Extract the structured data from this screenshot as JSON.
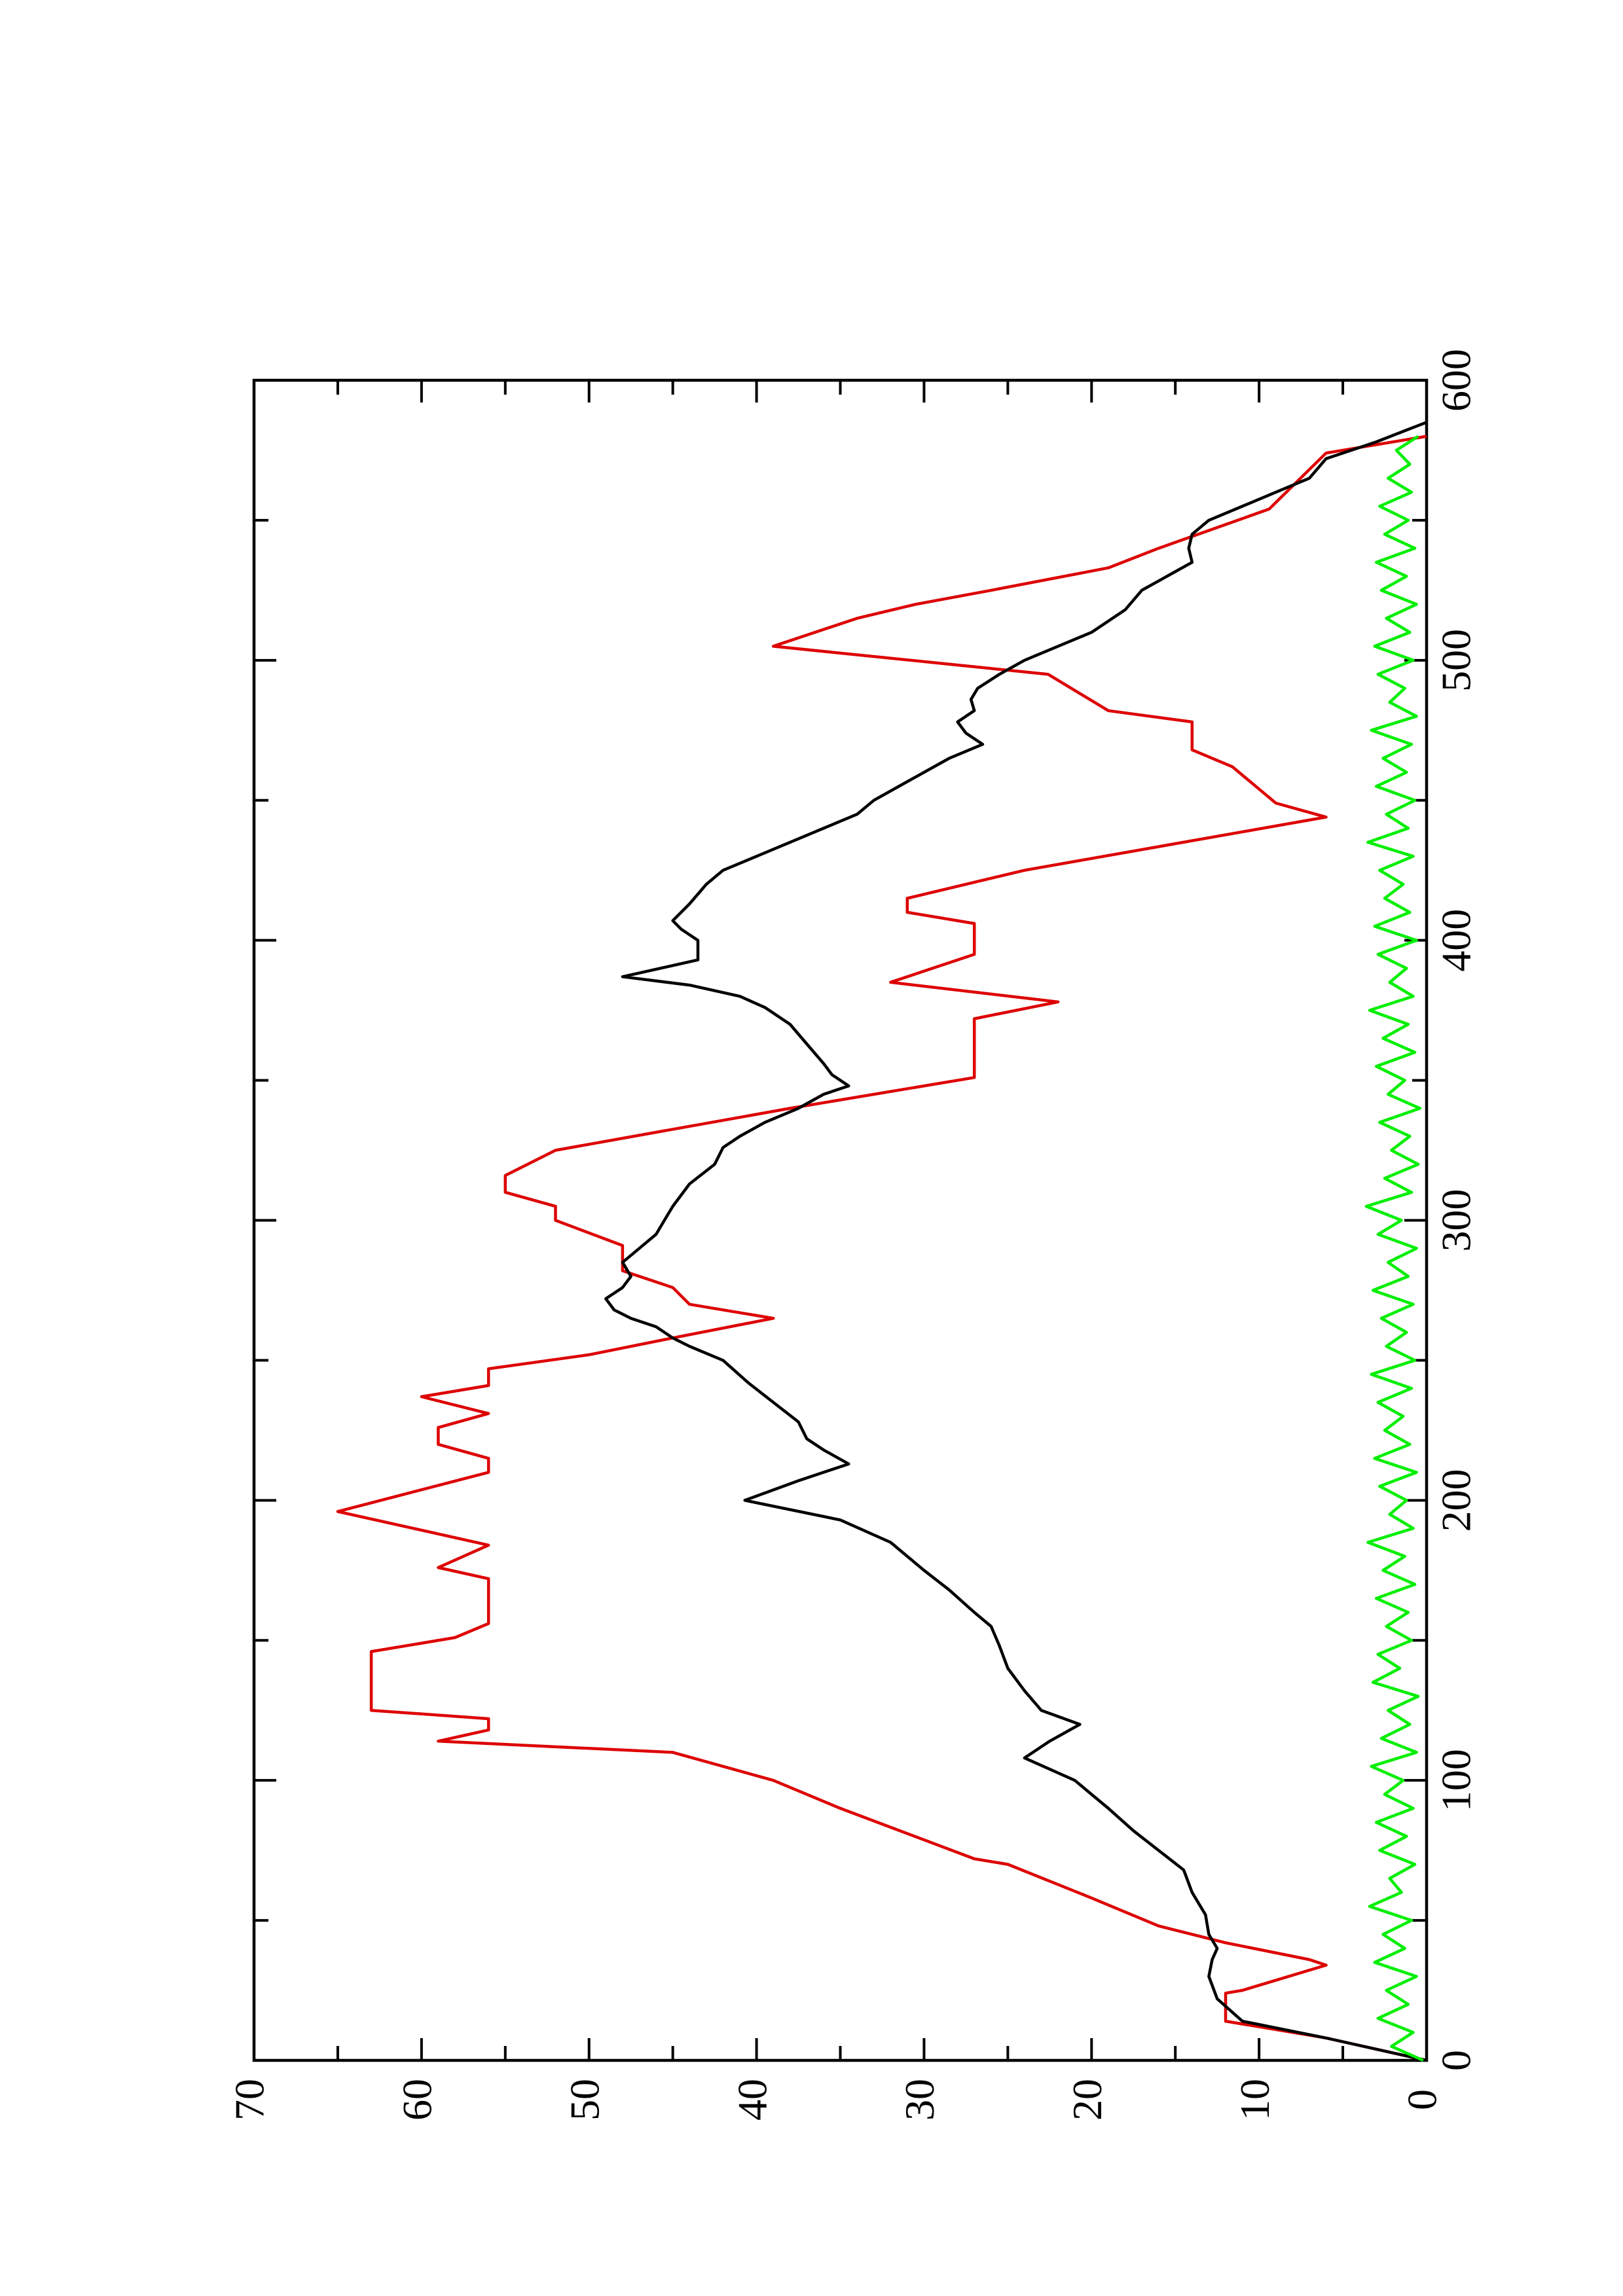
{
  "chart_data": {
    "type": "line",
    "xlim": [
      0,
      600
    ],
    "xticks": [
      0,
      100,
      200,
      300,
      400,
      500,
      600
    ],
    "xminorticks": [
      50,
      150,
      250,
      350,
      450,
      550
    ],
    "ylim": [
      0,
      70
    ],
    "yticks": [
      0,
      10,
      20,
      30,
      40,
      50,
      60,
      70
    ],
    "yminorticks": [
      5,
      15,
      25,
      35,
      45,
      55,
      65
    ],
    "series": [
      {
        "color": "#dd0000",
        "x": [
          0,
          8,
          14,
          24,
          25,
          34,
          36,
          42,
          48,
          58,
          70,
          72,
          90,
          95,
          100,
          110,
          114,
          118,
          122,
          125,
          146,
          151,
          156,
          164,
          172,
          176,
          184,
          196,
          210,
          215,
          220,
          226,
          231,
          237,
          241,
          247,
          252,
          258,
          265,
          270,
          276,
          282,
          291,
          300,
          305,
          310,
          316,
          325,
          340,
          351,
          372,
          378,
          385,
          395,
          406,
          410,
          415,
          425,
          444,
          449,
          462,
          468,
          478,
          482,
          495,
          505,
          515,
          520,
          525,
          533,
          540,
          554,
          574,
          580
        ],
        "values": [
          0,
          6,
          12,
          12,
          11,
          6,
          7,
          12,
          16,
          20,
          25,
          27,
          35,
          37,
          39,
          45,
          59,
          56,
          56,
          63,
          63,
          58,
          56,
          56,
          56,
          59,
          56,
          65,
          56,
          56,
          59,
          59,
          56,
          60,
          56,
          56,
          50,
          45,
          39,
          44,
          45,
          48,
          48,
          52,
          52,
          55,
          55,
          52,
          38,
          27,
          27,
          22,
          32,
          27,
          27,
          31,
          31,
          24,
          6,
          9,
          11.6,
          14,
          14,
          19,
          22.6,
          39,
          34,
          30.5,
          26,
          19,
          16,
          9.4,
          6,
          0
        ]
      },
      {
        "color": "#000000",
        "x": [
          0,
          8,
          14,
          22,
          30,
          36,
          40,
          45,
          52,
          60,
          68,
          75,
          82,
          90,
          95,
          100,
          104,
          108,
          114,
          120,
          125,
          132,
          140,
          148,
          155,
          160,
          168,
          175,
          180,
          185,
          193,
          200,
          207,
          213,
          218,
          222,
          228,
          235,
          242,
          250,
          255,
          258,
          262,
          265,
          268,
          272,
          276,
          280,
          285,
          290,
          295,
          300,
          305,
          313,
          320,
          326,
          330,
          335,
          340,
          345,
          348,
          352,
          356,
          363,
          370,
          376,
          380,
          384,
          387,
          393,
          400,
          404,
          407,
          413,
          420,
          425,
          430,
          435,
          440,
          445,
          450,
          455,
          460,
          465,
          470,
          474,
          478,
          482,
          486,
          490,
          495,
          500,
          505,
          510,
          518,
          525,
          530,
          535,
          540,
          545,
          550,
          555,
          560,
          565,
          572,
          578,
          585
        ],
        "values": [
          0,
          6,
          11,
          12.5,
          13,
          12.8,
          12.5,
          13,
          13.2,
          14,
          14.5,
          16,
          17.5,
          19,
          20,
          21,
          22.5,
          24,
          22.5,
          20.7,
          23,
          24,
          25,
          25.5,
          26,
          27,
          28.5,
          30,
          31,
          32,
          35,
          40.7,
          37.5,
          34.5,
          36,
          37,
          37.5,
          39,
          40.5,
          42,
          44,
          45,
          46,
          47.5,
          48.5,
          49,
          48,
          47.5,
          48,
          47,
          46,
          45.5,
          45,
          44,
          42.5,
          42,
          41,
          39.5,
          37.5,
          36,
          34.5,
          35.5,
          36,
          37,
          38,
          39.5,
          41,
          44,
          48,
          43.5,
          43.5,
          44.5,
          45,
          44,
          43,
          42,
          40,
          38,
          36,
          34,
          33,
          31.5,
          30,
          28.5,
          26.5,
          27.5,
          28,
          27,
          27.2,
          26.8,
          25.5,
          24,
          22,
          20,
          18,
          17,
          15.5,
          14,
          14.2,
          14,
          13,
          11,
          9,
          7,
          6,
          3,
          0
        ]
      },
      {
        "color": "#00ee00",
        "x": [
          0,
          5,
          10,
          15,
          20,
          25,
          30,
          35,
          40,
          45,
          50,
          55,
          60,
          65,
          70,
          75,
          80,
          85,
          90,
          95,
          100,
          105,
          110,
          115,
          120,
          125,
          130,
          135,
          140,
          145,
          150,
          155,
          160,
          165,
          170,
          175,
          180,
          185,
          190,
          195,
          200,
          205,
          210,
          215,
          220,
          225,
          230,
          235,
          240,
          245,
          250,
          255,
          260,
          265,
          270,
          275,
          280,
          285,
          290,
          295,
          300,
          305,
          310,
          315,
          320,
          325,
          330,
          335,
          340,
          345,
          350,
          355,
          360,
          365,
          370,
          375,
          380,
          385,
          390,
          395,
          400,
          405,
          410,
          415,
          420,
          425,
          430,
          435,
          440,
          445,
          450,
          455,
          460,
          465,
          470,
          475,
          480,
          485,
          490,
          495,
          500,
          505,
          510,
          515,
          520,
          525,
          530,
          535,
          540,
          545,
          550,
          555,
          560,
          565,
          570,
          575,
          580
        ],
        "values": [
          0.2,
          2.1,
          0.8,
          2.9,
          1.1,
          2.4,
          0.6,
          3.1,
          1.3,
          2.6,
          0.9,
          3.4,
          1.5,
          2.2,
          0.7,
          2.8,
          1.2,
          3.0,
          0.8,
          2.5,
          1.4,
          3.3,
          0.6,
          2.7,
          1.0,
          2.3,
          0.5,
          3.2,
          1.6,
          2.9,
          0.9,
          2.4,
          1.1,
          3.0,
          0.7,
          2.6,
          1.3,
          3.5,
          0.8,
          2.2,
          1.2,
          2.8,
          0.6,
          3.1,
          1.0,
          2.5,
          1.4,
          2.9,
          0.9,
          3.3,
          0.7,
          2.4,
          1.2,
          2.7,
          0.8,
          3.2,
          1.1,
          2.3,
          0.6,
          2.9,
          1.5,
          3.6,
          0.9,
          2.5,
          0.5,
          2.1,
          1.0,
          2.8,
          0.4,
          2.3,
          1.3,
          3.0,
          0.7,
          2.6,
          1.1,
          3.4,
          0.8,
          2.2,
          1.2,
          2.9,
          0.6,
          3.1,
          1.0,
          2.5,
          1.4,
          2.8,
          0.8,
          3.5,
          1.1,
          2.4,
          0.7,
          3.0,
          1.2,
          2.6,
          0.9,
          3.3,
          0.6,
          2.2,
          1.3,
          2.9,
          0.8,
          3.1,
          1.0,
          2.4,
          0.6,
          2.7,
          1.2,
          3.0,
          0.7,
          2.5,
          1.1,
          2.8,
          0.9,
          2.3,
          1.0,
          1.8,
          0.5
        ]
      }
    ]
  }
}
